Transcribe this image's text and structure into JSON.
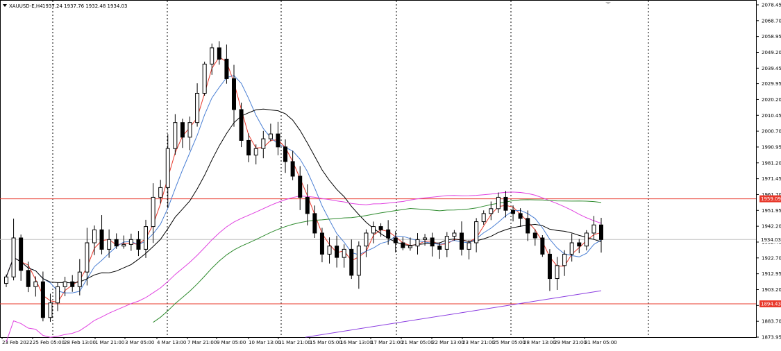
{
  "window": {
    "title": "XAUUSD-E,H4",
    "ohlc": "1937.24 1937.76 1932.48 1934.03"
  },
  "chart_data": {
    "type": "candlestick",
    "symbol": "XAUUSD-E",
    "timeframe": "H4",
    "ylim": [
      1873.95,
      2081.0
    ],
    "y_ticks": [
      "2078.45",
      "2068.70",
      "2058.95",
      "2049.20",
      "2039.45",
      "2029.95",
      "2020.20",
      "2010.45",
      "2000.70",
      "1990.95",
      "1981.20",
      "1971.45",
      "1961.70",
      "1951.95",
      "1942.20",
      "1932.45",
      "1922.70",
      "1912.95",
      "1903.20",
      "1893.45",
      "1883.70",
      "1873.95"
    ],
    "x_ticks": [
      "23 Feb 2022",
      "25 Feb 05:00",
      "28 Feb 13:00",
      "1 Mar 21:00",
      "3 Mar 05:00",
      "4 Mar 13:00",
      "7 Mar 21:00",
      "9 Mar 05:00",
      "10 Mar 13:00",
      "11 Mar 21:00",
      "15 Mar 05:00",
      "16 Mar 13:00",
      "17 Mar 21:00",
      "21 Mar 05:00",
      "22 Mar 13:00",
      "23 Mar 21:00",
      "25 Mar 05:00",
      "28 Mar 13:00",
      "29 Mar 21:00",
      "31 Mar 05:00"
    ],
    "closes": [
      1911,
      1935,
      1915,
      1905,
      1908,
      1886,
      1895,
      1905,
      1908,
      1905,
      1914,
      1932,
      1940,
      1928,
      1934,
      1930,
      1931,
      1934,
      1928,
      1942,
      1960,
      1966,
      1990,
      2006,
      1997,
      2006,
      2024,
      2042,
      2052,
      2045,
      2033,
      2014,
      1995,
      1986,
      1990,
      1996,
      1999,
      1991,
      1982,
      1973,
      1960,
      1950,
      1938,
      1925,
      1930,
      1923,
      1928,
      1912,
      1930,
      1938,
      1942,
      1940,
      1935,
      1932,
      1929,
      1930,
      1934,
      1935,
      1930,
      1928,
      1936,
      1938,
      1928,
      1932,
      1945,
      1950,
      1953,
      1960,
      1952,
      1950,
      1947,
      1938,
      1935,
      1925,
      1910,
      1918,
      1925,
      1932,
      1930,
      1938,
      1943,
      1934
    ],
    "horizontal_lines": [
      {
        "price": 1959.09,
        "label": "1959.09",
        "color": "#e8382b"
      },
      {
        "price": 1894.43,
        "label": "1894.43",
        "color": "#e8382b"
      }
    ],
    "current_price": {
      "price": 1934.03,
      "label": "1934.03"
    },
    "colors": {
      "ma_fast": "#e8382b",
      "ma_mid": "#4a7fd4",
      "ma_slow": "#000000",
      "ma_100": "#2e8b2e",
      "ma_200": "#e040e0",
      "ma_long": "#8a3ce0"
    }
  }
}
